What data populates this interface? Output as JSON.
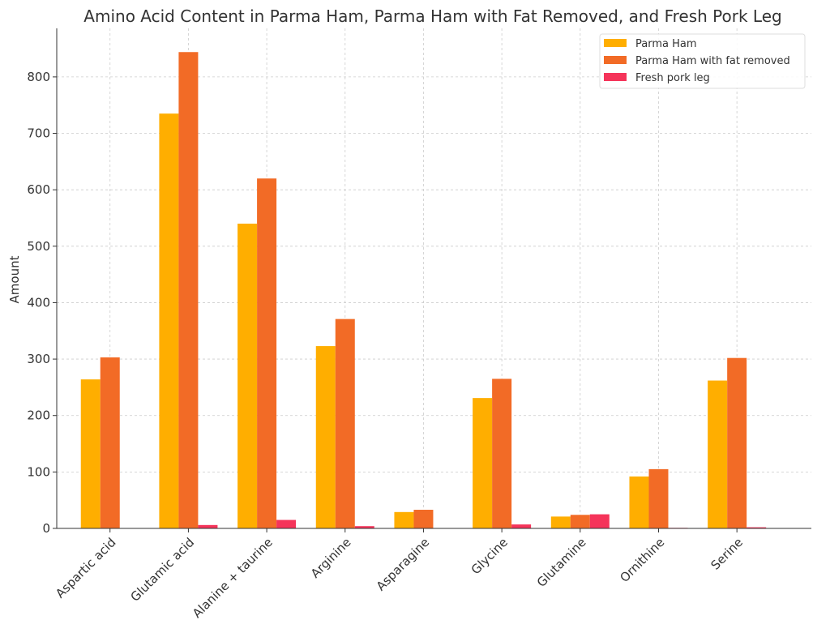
{
  "chart_data": {
    "type": "bar",
    "title": "Amino Acid Content in Parma Ham, Parma Ham with Fat Removed, and Fresh Pork Leg",
    "xlabel": "",
    "ylabel": "Amount",
    "ylim": [
      0,
      886
    ],
    "yticks": [
      0,
      100,
      200,
      300,
      400,
      500,
      600,
      700,
      800
    ],
    "grid": true,
    "legend_position": "top-right",
    "categories": [
      "Aspartic acid",
      "Glutamic acid",
      "Alanine + taurine",
      "Arginine",
      "Asparagine",
      "Glycine",
      "Glutamine",
      "Ornithine",
      "Serine"
    ],
    "series": [
      {
        "name": "Parma Ham",
        "color": "#ffae00",
        "values": [
          264,
          735,
          540,
          323,
          29,
          231,
          21,
          92,
          262
        ]
      },
      {
        "name": "Parma Ham with fat removed",
        "color": "#f26b26",
        "values": [
          303,
          844,
          620,
          371,
          33,
          265,
          24,
          105,
          302
        ]
      },
      {
        "name": "Fresh pork leg",
        "color": "#f5345a",
        "values": [
          0,
          6,
          15,
          4,
          0,
          7,
          25,
          1,
          2
        ]
      }
    ]
  }
}
